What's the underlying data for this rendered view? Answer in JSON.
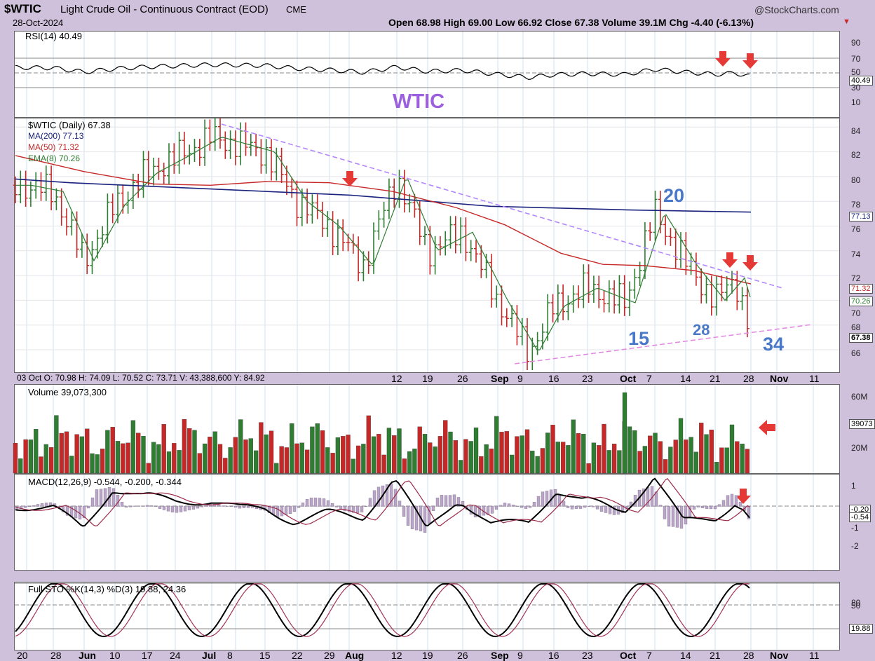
{
  "header": {
    "symbol": "$WTIC",
    "title": "Light Crude Oil - Continuous Contract (EOD)",
    "exchange": "CME",
    "date": "28-Oct-2024",
    "copyright": "@StockCharts.com",
    "quote": "Open 68.98  High 69.00  Low 66.92  Close 67.38  Volume 39.1M  Chg -4.40 (-6.13%)"
  },
  "rsi": {
    "label": "RSI(14) 40.49",
    "ticks": [
      "90",
      "70",
      "50",
      "30",
      "10"
    ],
    "current_tag": "40.49",
    "watermark": "WTIC"
  },
  "price": {
    "legend": [
      "$WTIC (Daily) 67.38",
      "MA(200) 77.13",
      "MA(50) 71.32",
      "EMA(8) 70.26"
    ],
    "ticks": [
      "84",
      "82",
      "80",
      "78",
      "76",
      "74",
      "72",
      "70",
      "68",
      "66"
    ],
    "tags": [
      "77.13",
      "71.32",
      "70.26",
      "67.38"
    ],
    "annotations": [
      "20",
      "15",
      "28",
      "34"
    ],
    "info_bar": "03 Oct O: 70.98   H: 74.09   L: 70.52   C: 73.71   V: 43,388,600   Y: 84.92",
    "x_labels_top": [
      "12",
      "19",
      "26",
      "Sep",
      "9",
      "16",
      "23",
      "Oct",
      "7",
      "14",
      "21",
      "28",
      "Nov",
      "11"
    ]
  },
  "volume": {
    "label": "Volume 39,073,300",
    "ticks": [
      "60M",
      "20M"
    ],
    "tag": "39073"
  },
  "macd": {
    "label": "MACD(12,26,9) -0.544, -0.200, -0.344",
    "ticks": [
      "1",
      "-1",
      "-2"
    ],
    "tags": [
      "-0.20",
      "-0.54"
    ]
  },
  "sto": {
    "label": "Full STO %K(14,3) %D(3) 19.88, 24.36",
    "ticks": [
      "80",
      "50"
    ],
    "tag": "19.88"
  },
  "x_labels_bottom": [
    "20",
    "28",
    "Jun",
    "10",
    "17",
    "24",
    "Jul",
    "8",
    "15",
    "22",
    "29",
    "Aug",
    "12",
    "19",
    "26",
    "Sep",
    "9",
    "16",
    "23",
    "Oct",
    "7",
    "14",
    "21",
    "28",
    "Nov",
    "11"
  ],
  "colors": {
    "up": "#2e7d32",
    "down": "#c62828",
    "ma200": "#1a237e",
    "ma50": "#c62828",
    "ema8": "#2e7d32",
    "trend": "#b388ff",
    "arrow": "#e53935",
    "annot": "#4a78c8"
  },
  "chart_data": {
    "type": "line",
    "title": "$WTIC Light Crude Oil - Continuous Contract (EOD)",
    "price_range": [
      65,
      85
    ],
    "close_path_approx": [
      [
        "May 20",
        79.3
      ],
      [
        "May 28",
        78.8
      ],
      [
        "Jun 4",
        73.2
      ],
      [
        "Jun 10",
        77.7
      ],
      [
        "Jun 17",
        80.3
      ],
      [
        "Jun 24",
        81.5
      ],
      [
        "Jul 5",
        83.2
      ],
      [
        "Jul 15",
        82.0
      ],
      [
        "Jul 22",
        78.0
      ],
      [
        "Jul 29",
        76.0
      ],
      [
        "Aug 5",
        72.8
      ],
      [
        "Aug 12",
        80.0
      ],
      [
        "Aug 19",
        74.0
      ],
      [
        "Aug 26",
        75.5
      ],
      [
        "Sep 3",
        70.0
      ],
      [
        "Sep 10",
        65.8
      ],
      [
        "Sep 16",
        69.5
      ],
      [
        "Sep 23",
        71.0
      ],
      [
        "Oct 1",
        69.8
      ],
      [
        "Oct 7",
        77.1
      ],
      [
        "Oct 14",
        73.0
      ],
      [
        "Oct 21",
        70.0
      ],
      [
        "Oct 25",
        71.8
      ],
      [
        "Oct 28",
        67.38
      ]
    ],
    "series": [
      {
        "name": "MA(200)",
        "last": 77.13
      },
      {
        "name": "MA(50)",
        "last": 71.32
      },
      {
        "name": "EMA(8)",
        "last": 70.26
      },
      {
        "name": "RSI(14)",
        "last": 40.49
      },
      {
        "name": "MACD",
        "values_last": [
          -0.544,
          -0.2,
          -0.344
        ]
      },
      {
        "name": "Full STO",
        "values_last": [
          19.88,
          24.36
        ]
      }
    ],
    "volume_last": 39073300
  }
}
